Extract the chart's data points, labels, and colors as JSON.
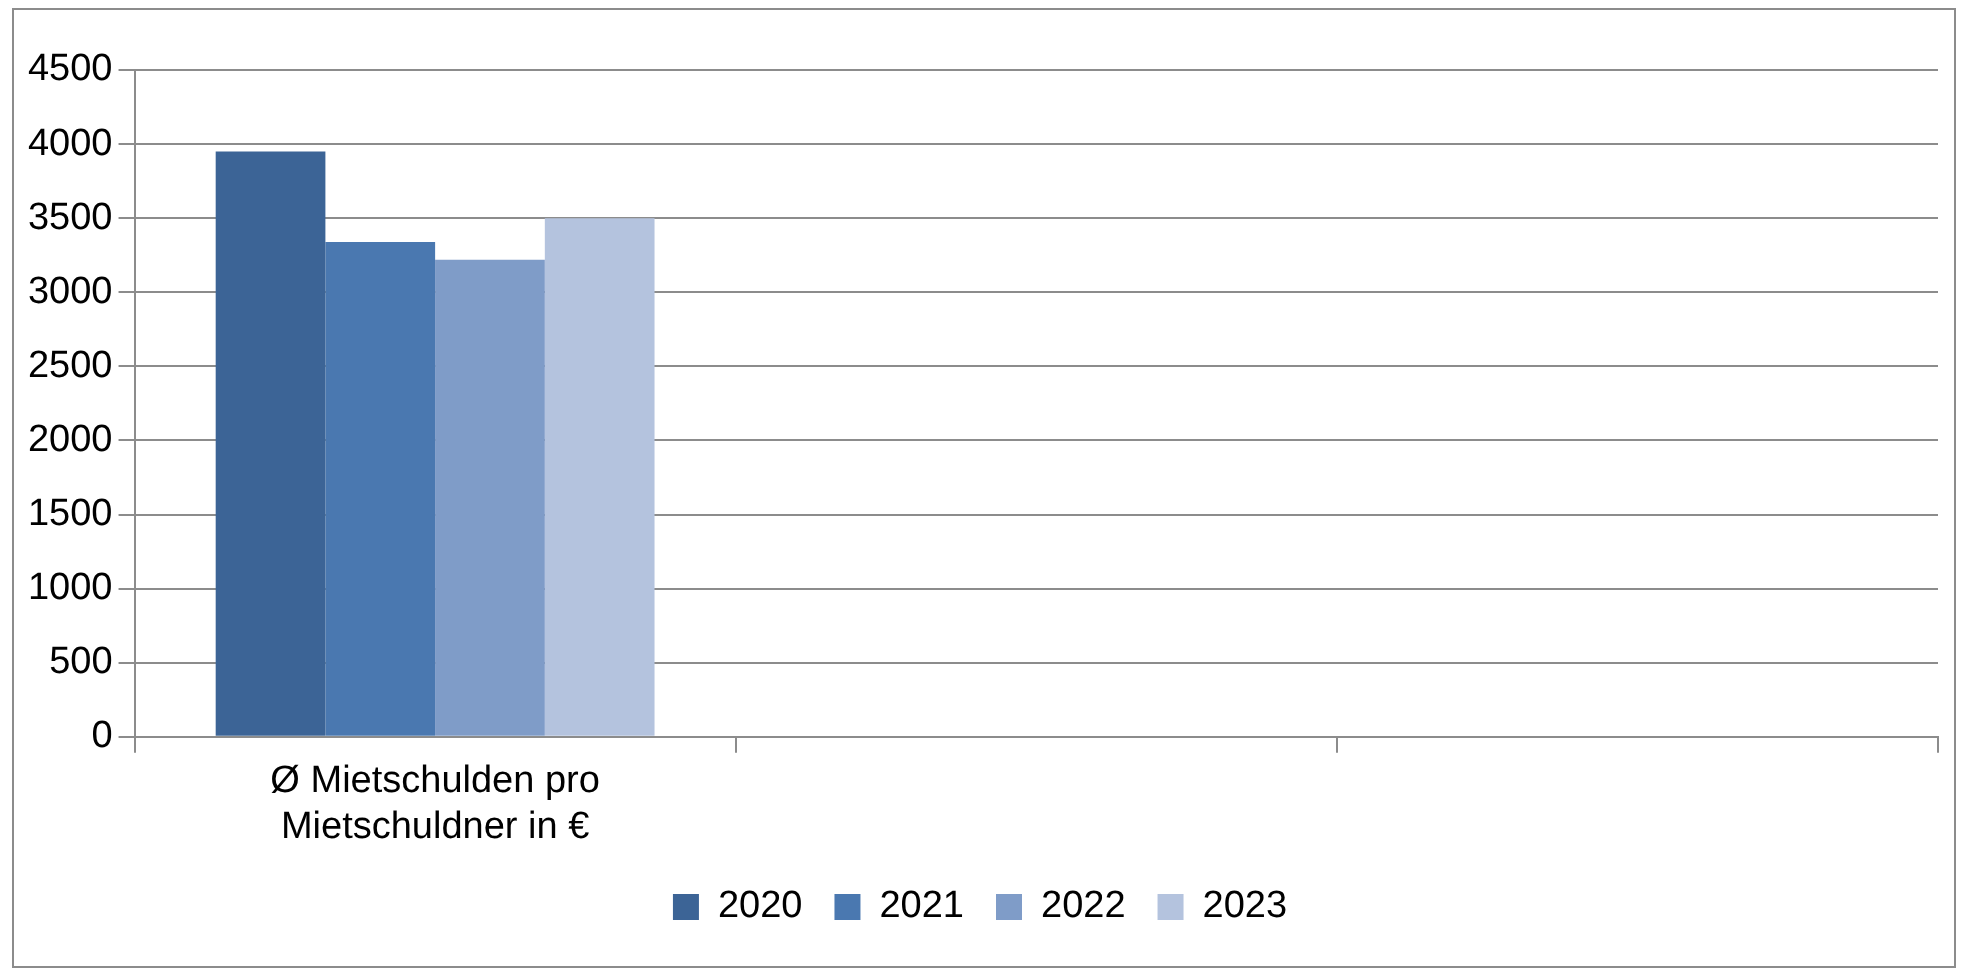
{
  "chart_data": {
    "type": "bar",
    "categories": [
      "Ø Mietschulden pro Mietschuldner in €",
      null,
      null
    ],
    "series": [
      {
        "name": "2020",
        "color": "#3c6496",
        "values": [
          3950,
          null,
          null
        ]
      },
      {
        "name": "2021",
        "color": "#4a78b0",
        "values": [
          3340,
          null,
          null
        ]
      },
      {
        "name": "2022",
        "color": "#7f9cc8",
        "values": [
          3220,
          null,
          null
        ]
      },
      {
        "name": "2023",
        "color": "#b4c3de",
        "values": [
          3500,
          null,
          null
        ]
      }
    ],
    "ylim": [
      0,
      4500
    ],
    "yticks": [
      0,
      500,
      1000,
      1500,
      2000,
      2500,
      3000,
      3500,
      4000,
      4500
    ],
    "grid": "y",
    "legend": "bottom"
  }
}
